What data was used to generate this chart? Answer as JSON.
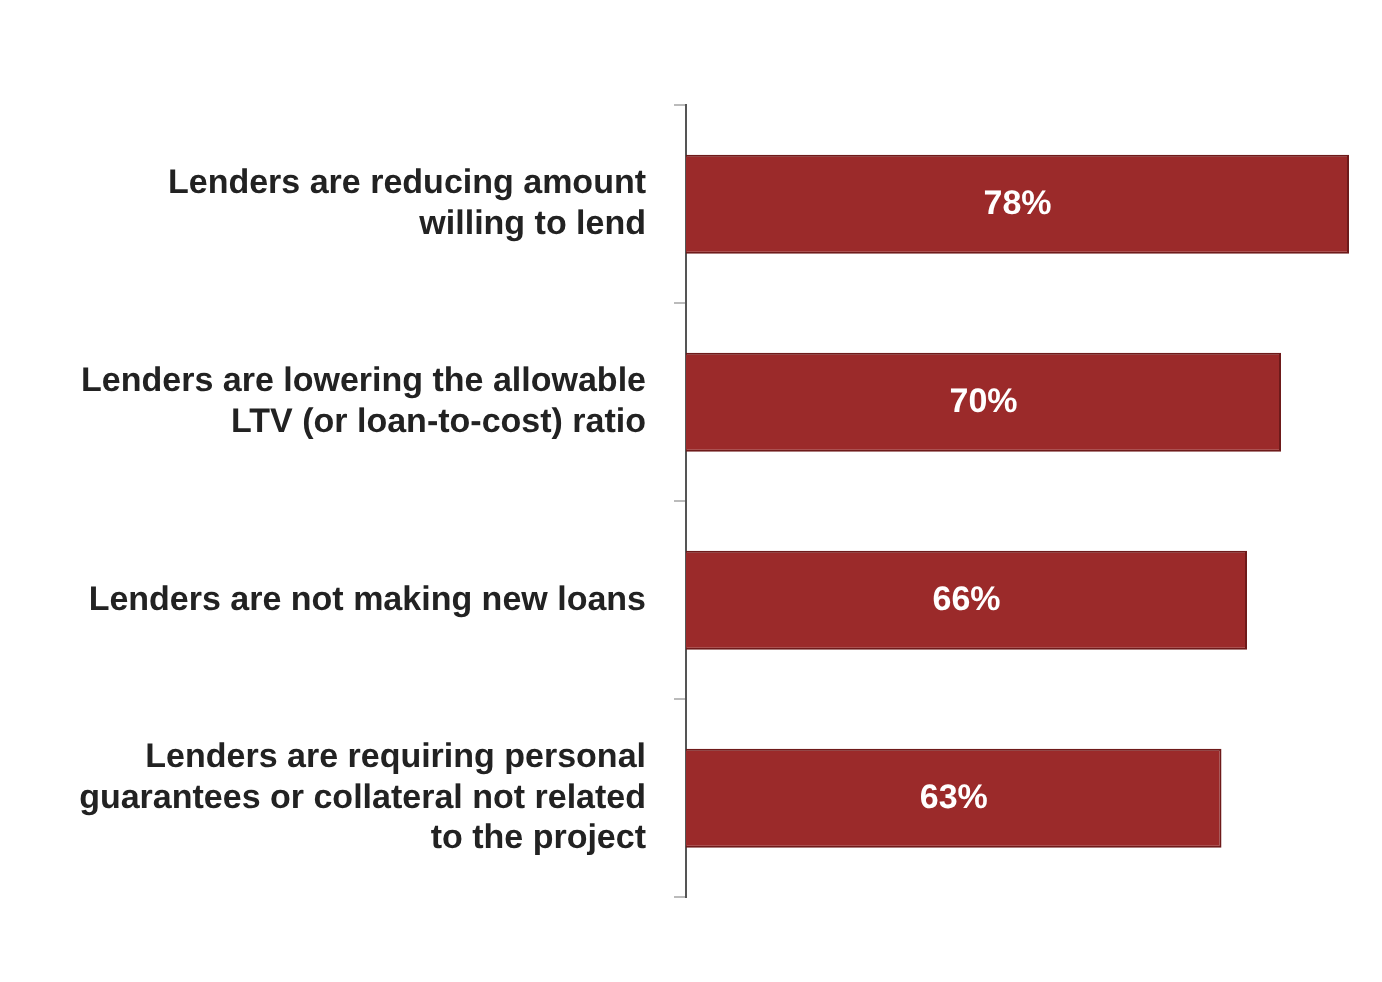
{
  "chart_data": {
    "type": "bar",
    "orientation": "horizontal",
    "categories": [
      "Lenders are reducing amount willing to lend",
      "Lenders are lowering the allowable LTV (or loan-to-cost) ratio",
      "Lenders are not making new loans",
      "Lenders are requiring personal guarantees or collateral not related to the project"
    ],
    "values": [
      78,
      70,
      66,
      63
    ],
    "value_labels": [
      "78%",
      "70%",
      "66%",
      "63%"
    ],
    "color": "#9b2a2a",
    "tick_labels": "y",
    "grid": false,
    "legend": false
  }
}
